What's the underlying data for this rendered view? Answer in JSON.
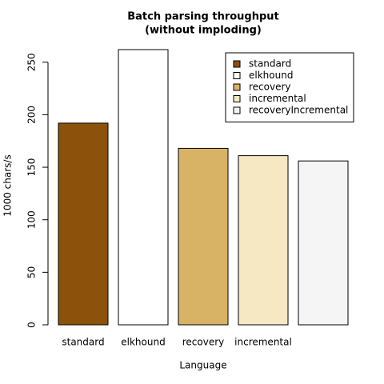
{
  "chart_data": {
    "type": "bar",
    "title": [
      "Batch parsing throughput",
      "(without imploding)"
    ],
    "x_label": "Language",
    "y_label": "1000 chars/s",
    "categories": [
      "standard",
      "elkhound",
      "recovery",
      "incremental",
      null
    ],
    "values": [
      192,
      262,
      168,
      161,
      156
    ],
    "ylim": [
      0,
      262
    ],
    "yticks": [
      0,
      50,
      100,
      150,
      200,
      250
    ],
    "legend_position": "topright",
    "legend": [
      {
        "name": "standard",
        "color": "#8c510a"
      },
      {
        "name": "elkhound",
        "color": "#ffffff"
      },
      {
        "name": "recovery",
        "color": "#d8b365"
      },
      {
        "name": "incremental",
        "color": "#f6e8c3"
      },
      {
        "name": "recoveryIncremental",
        "color": "#f5f5f5"
      }
    ]
  }
}
